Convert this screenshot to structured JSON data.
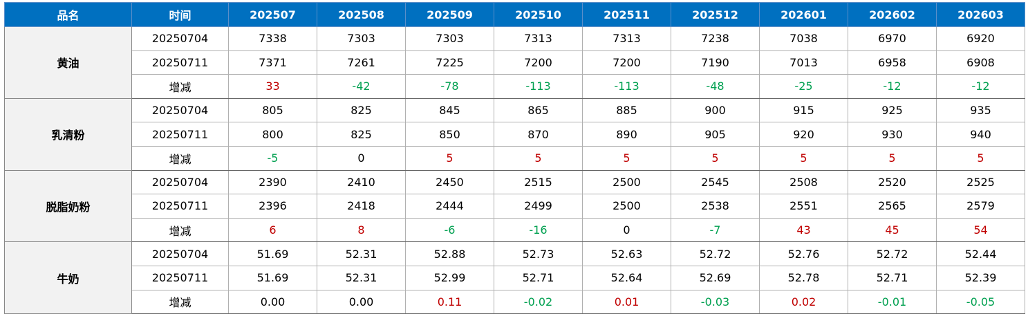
{
  "header": [
    "品名",
    "时间",
    "202507",
    "202508",
    "202509",
    "202510",
    "202511",
    "202512",
    "202601",
    "202602",
    "202603"
  ],
  "groups": [
    {
      "name": "黄油",
      "rows": [
        [
          "20250704",
          "7338",
          "7303",
          "7303",
          "7313",
          "7313",
          "7238",
          "7038",
          "6970",
          "6920"
        ],
        [
          "20250711",
          "7371",
          "7261",
          "7225",
          "7200",
          "7200",
          "7190",
          "7013",
          "6958",
          "6908"
        ],
        [
          "增减",
          "33",
          "-42",
          "-78",
          "-113",
          "-113",
          "-48",
          "-25",
          "-12",
          "-12"
        ]
      ]
    },
    {
      "name": "乳清粉",
      "rows": [
        [
          "20250704",
          "805",
          "825",
          "845",
          "865",
          "885",
          "900",
          "915",
          "925",
          "935"
        ],
        [
          "20250711",
          "800",
          "825",
          "850",
          "870",
          "890",
          "905",
          "920",
          "930",
          "940"
        ],
        [
          "增减",
          "-5",
          "0",
          "5",
          "5",
          "5",
          "5",
          "5",
          "5",
          "5"
        ]
      ]
    },
    {
      "name": "脱脂奶粉",
      "rows": [
        [
          "20250704",
          "2390",
          "2410",
          "2450",
          "2515",
          "2500",
          "2545",
          "2508",
          "2520",
          "2525"
        ],
        [
          "20250711",
          "2396",
          "2418",
          "2444",
          "2499",
          "2500",
          "2538",
          "2551",
          "2565",
          "2579"
        ],
        [
          "增减",
          "6",
          "8",
          "-6",
          "-16",
          "0",
          "-7",
          "43",
          "45",
          "54"
        ]
      ]
    },
    {
      "name": "牛奶",
      "rows": [
        [
          "20250704",
          "51.69",
          "52.31",
          "52.88",
          "52.73",
          "52.63",
          "52.72",
          "52.76",
          "52.72",
          "52.44"
        ],
        [
          "20250711",
          "51.69",
          "52.31",
          "52.99",
          "52.71",
          "52.64",
          "52.69",
          "52.78",
          "52.71",
          "52.39"
        ],
        [
          "增减",
          "0.00",
          "0.00",
          "0.11",
          "-0.02",
          "0.01",
          "-0.03",
          "0.02",
          "-0.01",
          "-0.05"
        ]
      ]
    }
  ]
}
